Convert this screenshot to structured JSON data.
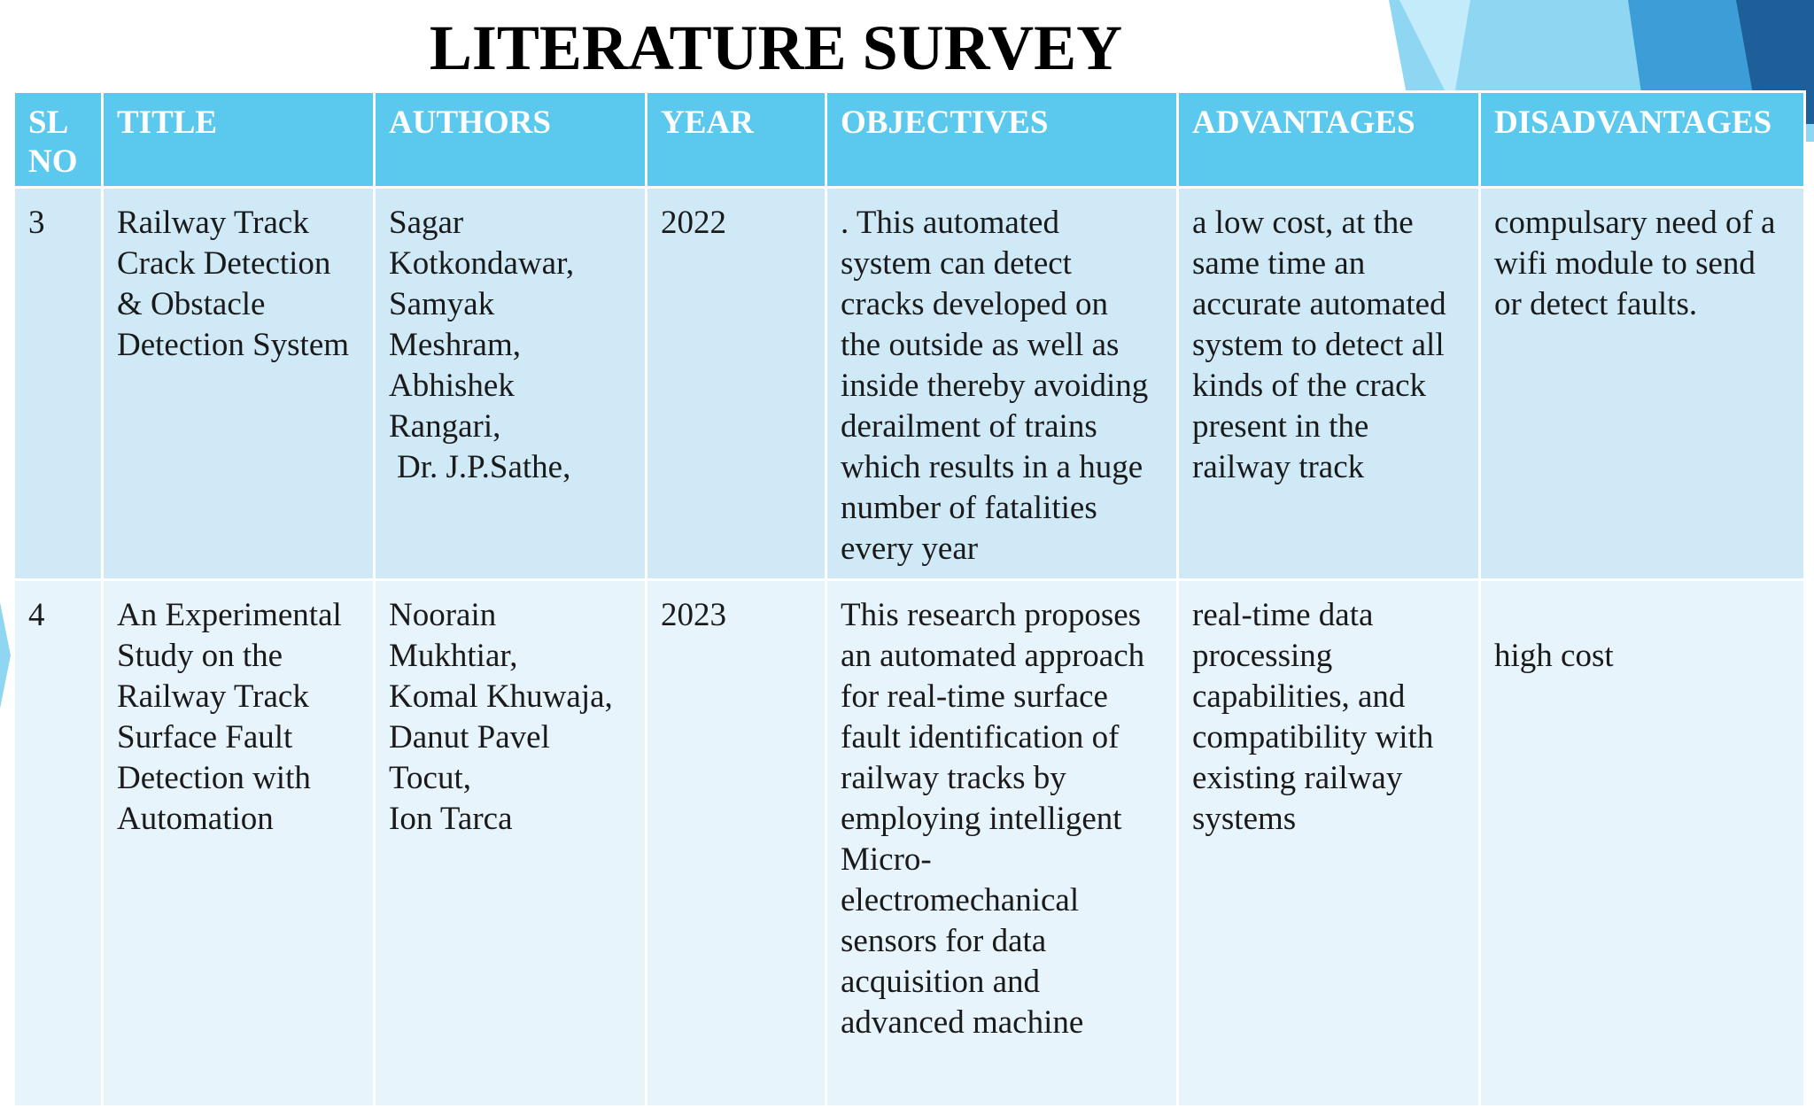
{
  "slide": {
    "title": "LITERATURE SURVEY"
  },
  "colors": {
    "header_bg": "#5bc8ee",
    "row_odd_bg": "#d0e9f6",
    "row_even_bg": "#e7f4fb",
    "decor_light": "#8fd6f2",
    "decor_mid": "#3d9dd6",
    "decor_dark": "#1f5f99"
  },
  "table": {
    "headers": {
      "sl_no": [
        "SL",
        "NO"
      ],
      "title": "TITLE",
      "authors": "AUTHORS",
      "year": "YEAR",
      "objectives": "OBJECTIVES",
      "advantages": "ADVANTAGES",
      "disadvantages": "DISADVANTAGES"
    },
    "rows": [
      {
        "sl_no": "3",
        "title": [
          "Railway Track",
          "Crack Detection",
          "& Obstacle",
          "Detection System"
        ],
        "authors": [
          "Sagar",
          "Kotkondawar,",
          "Samyak",
          "Meshram,",
          "Abhishek",
          "Rangari,",
          "Dr. J.P.Sathe,"
        ],
        "year": "2022",
        "objectives": [
          ". This automated",
          "system can detect",
          "cracks developed on",
          "the outside as well as",
          "inside thereby avoiding",
          "derailment of trains",
          "which results in a huge",
          "number of fatalities",
          "every year"
        ],
        "advantages": [
          "a low cost, at the",
          "same time an",
          "accurate automated",
          "system to detect all",
          "kinds of the crack",
          "present in the",
          "railway track"
        ],
        "disadvantages": [
          "compulsary need of a",
          "wifi module to send",
          "or detect faults."
        ]
      },
      {
        "sl_no": "4",
        "title": [
          "An Experimental",
          "Study on the",
          "Railway Track",
          "Surface Fault",
          "Detection with",
          "Automation"
        ],
        "authors": [
          "Noorain",
          "Mukhtiar,",
          "Komal Khuwaja,",
          "Danut Pavel",
          "Tocut,",
          "Ion Tarca"
        ],
        "year": "2023",
        "objectives": [
          "This research proposes",
          "an automated approach",
          "for real-time surface",
          "fault identification of",
          "railway tracks by",
          "employing intelligent",
          "Micro-",
          "electromechanical",
          "sensors for data",
          "acquisition and",
          "advanced machine"
        ],
        "advantages": [
          "real-time data",
          "processing",
          "capabilities, and",
          "compatibility with",
          "existing railway",
          "systems"
        ],
        "disadvantages": [
          "high cost"
        ]
      }
    ]
  }
}
